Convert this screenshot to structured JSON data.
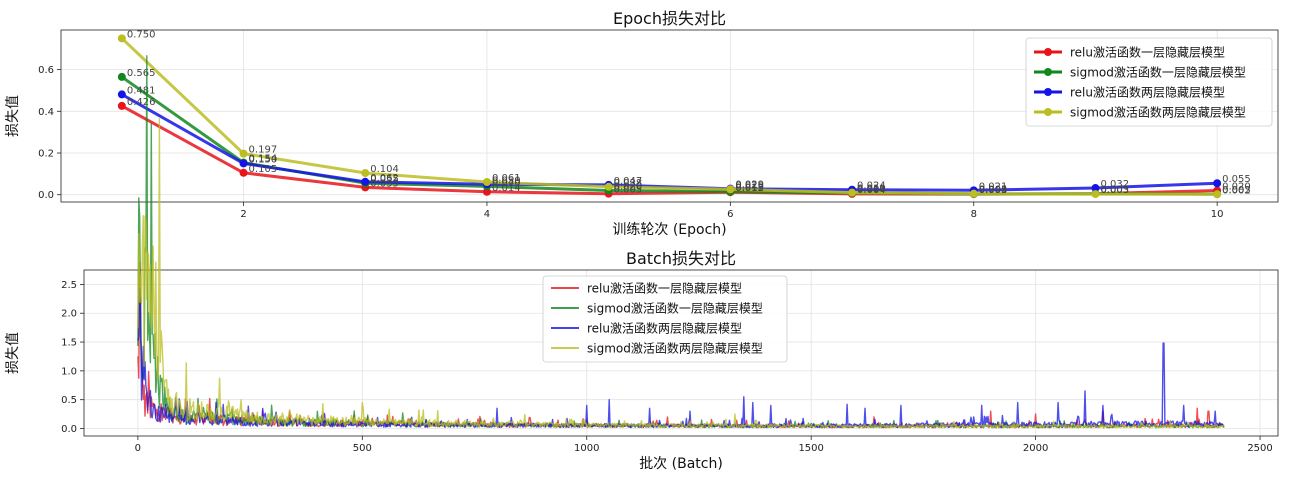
{
  "chart_data": [
    {
      "type": "line",
      "title": "Epoch损失对比",
      "xlabel": "训练轮次 (Epoch)",
      "ylabel": "损失值",
      "xlim": [
        0.5,
        10.5
      ],
      "ylim": [
        -0.035,
        0.79
      ],
      "xticks": [
        2,
        4,
        6,
        8,
        10
      ],
      "yticks": [
        0.0,
        0.2,
        0.4,
        0.6
      ],
      "grid": true,
      "legend_position": "top-right",
      "markers": true,
      "x": [
        1,
        2,
        3,
        4,
        5,
        6,
        7,
        8,
        9,
        10
      ],
      "series": [
        {
          "name": "relu激活函数一层隐藏层模型",
          "color": "#e8141c",
          "values": [
            0.426,
            0.105,
            0.035,
            0.014,
            0.005,
            0.012,
            0.004,
            0.003,
            0.005,
            0.02
          ]
        },
        {
          "name": "sigmod激活函数一层隐藏层模型",
          "color": "#12871e",
          "values": [
            0.565,
            0.154,
            0.055,
            0.04,
            0.02,
            0.015,
            0.008,
            0.004,
            0.005,
            0.003
          ]
        },
        {
          "name": "relu激活函数两层隐藏层模型",
          "color": "#1414e6",
          "values": [
            0.481,
            0.15,
            0.062,
            0.05,
            0.047,
            0.029,
            0.024,
            0.021,
            0.032,
            0.055
          ]
        },
        {
          "name": "sigmod激活函数两层隐藏层模型",
          "color": "#bcbd22",
          "values": [
            0.75,
            0.197,
            0.104,
            0.061,
            0.038,
            0.026,
            0.01,
            0.005,
            0.003,
            0.002
          ]
        }
      ],
      "annotations": [
        {
          "x": 1,
          "y": 0.75,
          "text": "0.750"
        },
        {
          "x": 1,
          "y": 0.565,
          "text": "0.565"
        },
        {
          "x": 1,
          "y": 0.481,
          "text": "0.481"
        },
        {
          "x": 1,
          "y": 0.426,
          "text": "0.426"
        },
        {
          "x": 2,
          "y": 0.197,
          "text": "0.197"
        },
        {
          "x": 2,
          "y": 0.154,
          "text": "0.154"
        },
        {
          "x": 2,
          "y": 0.15,
          "text": "0.150"
        },
        {
          "x": 2,
          "y": 0.105,
          "text": "0.105"
        },
        {
          "x": 3,
          "y": 0.104,
          "text": "0.104"
        },
        {
          "x": 3,
          "y": 0.062,
          "text": "0.062"
        },
        {
          "x": 3,
          "y": 0.055,
          "text": "0.055"
        },
        {
          "x": 3,
          "y": 0.035,
          "text": "0.035"
        },
        {
          "x": 4,
          "y": 0.061,
          "text": "0.061"
        },
        {
          "x": 4,
          "y": 0.05,
          "text": "0.050"
        },
        {
          "x": 4,
          "y": 0.04,
          "text": "0.040"
        },
        {
          "x": 4,
          "y": 0.014,
          "text": "0.014"
        },
        {
          "x": 5,
          "y": 0.047,
          "text": "0.047"
        },
        {
          "x": 5,
          "y": 0.038,
          "text": "0.038"
        },
        {
          "x": 5,
          "y": 0.02,
          "text": "0.020"
        },
        {
          "x": 5,
          "y": 0.005,
          "text": "0.005"
        },
        {
          "x": 6,
          "y": 0.029,
          "text": "0.029"
        },
        {
          "x": 6,
          "y": 0.026,
          "text": "0.026"
        },
        {
          "x": 6,
          "y": 0.015,
          "text": "0.015"
        },
        {
          "x": 6,
          "y": 0.012,
          "text": "0.012"
        },
        {
          "x": 7,
          "y": 0.024,
          "text": "0.024"
        },
        {
          "x": 7,
          "y": 0.01,
          "text": "0.010"
        },
        {
          "x": 7,
          "y": 0.008,
          "text": "0.008"
        },
        {
          "x": 7,
          "y": 0.004,
          "text": "0.004"
        },
        {
          "x": 8,
          "y": 0.021,
          "text": "0.021"
        },
        {
          "x": 8,
          "y": 0.005,
          "text": "0.005"
        },
        {
          "x": 8,
          "y": 0.004,
          "text": "0.004"
        },
        {
          "x": 8,
          "y": 0.003,
          "text": "0.003"
        },
        {
          "x": 9,
          "y": 0.032,
          "text": "0.032"
        },
        {
          "x": 9,
          "y": 0.005,
          "text": "0.005"
        },
        {
          "x": 9,
          "y": 0.003,
          "text": "0.003"
        },
        {
          "x": 10,
          "y": 0.055,
          "text": "0.055"
        },
        {
          "x": 10,
          "y": 0.02,
          "text": "0.020"
        },
        {
          "x": 10,
          "y": 0.003,
          "text": "0.003"
        },
        {
          "x": 10,
          "y": 0.002,
          "text": "0.002"
        }
      ]
    },
    {
      "type": "line",
      "title": "Batch损失对比",
      "xlabel": "批次 (Batch)",
      "ylabel": "损失值",
      "xlim": [
        -120,
        2540
      ],
      "ylim": [
        -0.13,
        2.75
      ],
      "xticks": [
        0,
        500,
        1000,
        1500,
        2000,
        2500
      ],
      "yticks": [
        0.0,
        0.5,
        1.0,
        1.5,
        2.0,
        2.5
      ],
      "grid": true,
      "legend_position": "top-center",
      "x_range": [
        0,
        2420
      ],
      "series": [
        {
          "name": "relu激活函数一层隐藏层模型",
          "color": "#e8141c",
          "x": [
            0,
            5,
            10,
            15,
            20,
            25,
            30,
            40,
            50,
            60,
            80,
            100,
            150,
            200,
            250,
            300,
            400,
            500,
            600,
            800,
            1000,
            1200,
            1400,
            1600,
            1800,
            2000,
            2200,
            2420
          ],
          "values": [
            2.55,
            1.6,
            0.9,
            0.6,
            0.5,
            0.4,
            0.35,
            0.3,
            0.27,
            0.25,
            0.22,
            0.2,
            0.17,
            0.14,
            0.12,
            0.1,
            0.09,
            0.08,
            0.07,
            0.06,
            0.05,
            0.05,
            0.04,
            0.04,
            0.04,
            0.04,
            0.05,
            0.05
          ],
          "spikes": [
            [
              1180,
              0.2
            ],
            [
              1640,
              0.2
            ],
            [
              1900,
              0.3
            ],
            [
              2000,
              0.25
            ],
            [
              2150,
              0.3
            ],
            [
              2360,
              0.35
            ],
            [
              2385,
              0.3
            ]
          ]
        },
        {
          "name": "sigmod激活函数一层隐藏层模型",
          "color": "#12871e",
          "x": [
            0,
            10,
            20,
            30,
            40,
            50,
            60,
            70,
            80,
            100,
            150,
            200,
            250,
            300,
            400,
            500,
            600,
            800,
            1000,
            1200,
            1400,
            1600,
            1800,
            2000,
            2200,
            2420
          ],
          "values": [
            2.6,
            2.3,
            2.0,
            1.7,
            1.2,
            0.7,
            0.45,
            0.35,
            0.3,
            0.25,
            0.2,
            0.17,
            0.14,
            0.12,
            0.1,
            0.09,
            0.08,
            0.06,
            0.05,
            0.05,
            0.04,
            0.04,
            0.04,
            0.04,
            0.04,
            0.04
          ],
          "spikes": []
        },
        {
          "name": "relu激活函数两层隐藏层模型",
          "color": "#1414e6",
          "x": [
            0,
            5,
            10,
            15,
            20,
            25,
            30,
            40,
            50,
            60,
            80,
            100,
            150,
            200,
            250,
            300,
            400,
            500,
            600,
            800,
            1000,
            1200,
            1400,
            1600,
            1800,
            2000,
            2200,
            2420
          ],
          "values": [
            2.5,
            1.7,
            1.1,
            0.75,
            0.6,
            0.5,
            0.42,
            0.35,
            0.3,
            0.27,
            0.24,
            0.2,
            0.16,
            0.13,
            0.11,
            0.1,
            0.08,
            0.07,
            0.06,
            0.06,
            0.05,
            0.05,
            0.05,
            0.05,
            0.06,
            0.07,
            0.08,
            0.08
          ],
          "spikes": [
            [
              800,
              0.35
            ],
            [
              1000,
              0.4
            ],
            [
              1050,
              0.5
            ],
            [
              1140,
              0.35
            ],
            [
              1230,
              0.3
            ],
            [
              1350,
              0.55
            ],
            [
              1370,
              0.45
            ],
            [
              1410,
              0.4
            ],
            [
              1580,
              0.42
            ],
            [
              1620,
              0.35
            ],
            [
              1700,
              0.4
            ],
            [
              1880,
              0.4
            ],
            [
              1960,
              0.45
            ],
            [
              2050,
              0.45
            ],
            [
              2110,
              0.65
            ],
            [
              2150,
              0.4
            ],
            [
              2285,
              1.48
            ],
            [
              2330,
              0.4
            ],
            [
              2400,
              0.3
            ]
          ]
        },
        {
          "name": "sigmod激活函数两层隐藏层模型",
          "color": "#bcbd22",
          "x": [
            0,
            10,
            20,
            30,
            40,
            50,
            55,
            60,
            70,
            80,
            100,
            150,
            200,
            250,
            300,
            400,
            500,
            600,
            800,
            1000,
            1200,
            1400,
            1600,
            1800,
            2000,
            2200,
            2420
          ],
          "values": [
            2.6,
            2.4,
            2.35,
            2.3,
            2.15,
            1.6,
            1.0,
            0.6,
            0.45,
            0.4,
            0.35,
            0.3,
            0.25,
            0.2,
            0.17,
            0.14,
            0.12,
            0.1,
            0.08,
            0.06,
            0.05,
            0.05,
            0.04,
            0.04,
            0.04,
            0.04,
            0.04
          ],
          "spikes": [
            [
              230,
              0.5
            ],
            [
              500,
              0.45
            ],
            [
              1330,
              0.25
            ]
          ]
        }
      ]
    }
  ]
}
